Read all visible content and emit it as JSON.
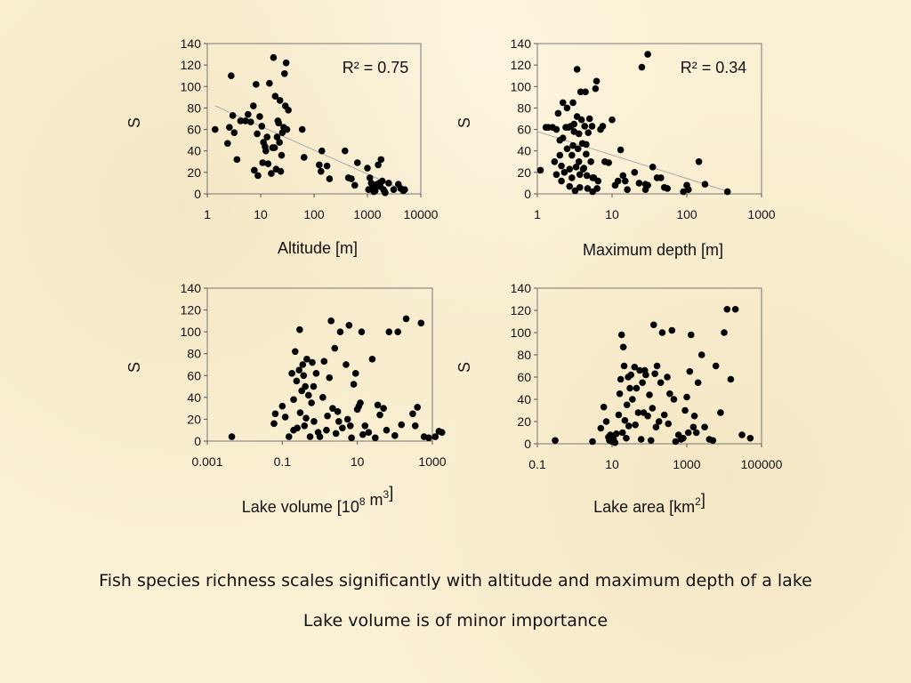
{
  "chart_data": [
    {
      "type": "scatter",
      "xscale": "log",
      "xlim": [
        1,
        10000
      ],
      "ylim": [
        0,
        140
      ],
      "xticks": [
        "1",
        "10",
        "100",
        "1000",
        "10000"
      ],
      "yticks": [
        "0",
        "20",
        "40",
        "60",
        "80",
        "100",
        "120",
        "140"
      ],
      "xlabel": "Altitude [m]",
      "ylabel": "S",
      "r2": "R² = 0.75",
      "trend": [
        [
          1.4,
          82
        ],
        [
          5000,
          3
        ]
      ],
      "points": [
        [
          1.4,
          60
        ],
        [
          2.4,
          47
        ],
        [
          2.6,
          62
        ],
        [
          2.8,
          110
        ],
        [
          3.0,
          73
        ],
        [
          3.2,
          57
        ],
        [
          3.6,
          32
        ],
        [
          4.2,
          68
        ],
        [
          5.2,
          68
        ],
        [
          5.8,
          74
        ],
        [
          6.5,
          67
        ],
        [
          7.3,
          82
        ],
        [
          7.6,
          22
        ],
        [
          8.2,
          102
        ],
        [
          8.6,
          56
        ],
        [
          8.9,
          17
        ],
        [
          9.6,
          72
        ],
        [
          10.5,
          63
        ],
        [
          10.9,
          29
        ],
        [
          11.3,
          48
        ],
        [
          12.1,
          44
        ],
        [
          12.5,
          40
        ],
        [
          13.2,
          53
        ],
        [
          13.8,
          28
        ],
        [
          14.6,
          103
        ],
        [
          15.8,
          19
        ],
        [
          16.7,
          43
        ],
        [
          17.4,
          127
        ],
        [
          18.2,
          43
        ],
        [
          18.7,
          91
        ],
        [
          19.5,
          23
        ],
        [
          20.3,
          53
        ],
        [
          21.0,
          68
        ],
        [
          21.7,
          66
        ],
        [
          22.5,
          48
        ],
        [
          23.0,
          87
        ],
        [
          23.8,
          21
        ],
        [
          24.6,
          36
        ],
        [
          25.5,
          57
        ],
        [
          27.0,
          62
        ],
        [
          28.0,
          112
        ],
        [
          29.0,
          82
        ],
        [
          30.0,
          122
        ],
        [
          31.0,
          60
        ],
        [
          33.0,
          78
        ],
        [
          60.0,
          60
        ],
        [
          65.0,
          34
        ],
        [
          125,
          27
        ],
        [
          135,
          21
        ],
        [
          140,
          40
        ],
        [
          175,
          26
        ],
        [
          195,
          14
        ],
        [
          380,
          40
        ],
        [
          440,
          15
        ],
        [
          500,
          14
        ],
        [
          580,
          8
        ],
        [
          650,
          29
        ],
        [
          1000,
          24
        ],
        [
          1050,
          4
        ],
        [
          1110,
          15
        ],
        [
          1180,
          10
        ],
        [
          1250,
          6
        ],
        [
          1320,
          2
        ],
        [
          1400,
          3
        ],
        [
          1470,
          8
        ],
        [
          1520,
          9
        ],
        [
          1590,
          27
        ],
        [
          1670,
          10
        ],
        [
          1740,
          7
        ],
        [
          1800,
          32
        ],
        [
          1900,
          12
        ],
        [
          2000,
          4
        ],
        [
          2100,
          2
        ],
        [
          2150,
          1
        ],
        [
          2500,
          10
        ],
        [
          3100,
          4
        ],
        [
          3800,
          9
        ],
        [
          4200,
          5
        ],
        [
          4700,
          3
        ],
        [
          5000,
          4
        ]
      ]
    },
    {
      "type": "scatter",
      "xscale": "log",
      "xlim": [
        1,
        1000
      ],
      "ylim": [
        0,
        140
      ],
      "xticks": [
        "1",
        "10",
        "100",
        "1000"
      ],
      "yticks": [
        "0",
        "20",
        "40",
        "60",
        "80",
        "100",
        "120",
        "140"
      ],
      "xlabel": "Maximum depth [m]",
      "ylabel": "S",
      "r2": "R² = 0.34",
      "trend": [
        [
          1,
          58
        ],
        [
          330,
          3
        ]
      ],
      "points": [
        [
          1.1,
          22
        ],
        [
          1.3,
          62
        ],
        [
          1.4,
          62
        ],
        [
          1.6,
          62
        ],
        [
          1.7,
          30
        ],
        [
          1.8,
          18
        ],
        [
          1.8,
          60
        ],
        [
          1.9,
          75
        ],
        [
          2.0,
          50
        ],
        [
          2.0,
          36
        ],
        [
          2.1,
          26
        ],
        [
          2.1,
          12
        ],
        [
          2.2,
          85
        ],
        [
          2.2,
          52
        ],
        [
          2.3,
          20
        ],
        [
          2.4,
          62
        ],
        [
          2.5,
          42
        ],
        [
          2.5,
          80
        ],
        [
          2.6,
          62
        ],
        [
          2.7,
          7
        ],
        [
          2.7,
          23
        ],
        [
          2.8,
          63
        ],
        [
          2.9,
          15
        ],
        [
          2.9,
          36
        ],
        [
          3.0,
          45
        ],
        [
          3.0,
          85
        ],
        [
          3.1,
          65
        ],
        [
          3.1,
          58
        ],
        [
          3.2,
          3
        ],
        [
          3.3,
          25
        ],
        [
          3.4,
          116
        ],
        [
          3.4,
          72
        ],
        [
          3.5,
          42
        ],
        [
          3.6,
          30
        ],
        [
          3.6,
          56
        ],
        [
          3.7,
          18
        ],
        [
          3.7,
          6
        ],
        [
          3.8,
          95
        ],
        [
          3.9,
          69
        ],
        [
          4.0,
          47
        ],
        [
          4.1,
          23
        ],
        [
          4.2,
          24
        ],
        [
          4.3,
          63
        ],
        [
          4.4,
          95
        ],
        [
          4.5,
          37
        ],
        [
          4.5,
          46
        ],
        [
          4.6,
          17
        ],
        [
          4.7,
          5
        ],
        [
          4.8,
          57
        ],
        [
          5.0,
          70
        ],
        [
          5.2,
          30
        ],
        [
          5.4,
          63
        ],
        [
          5.5,
          15
        ],
        [
          5.5,
          2
        ],
        [
          5.7,
          15
        ],
        [
          6.0,
          98
        ],
        [
          6.2,
          105
        ],
        [
          6.3,
          5
        ],
        [
          6.5,
          12
        ],
        [
          7.0,
          60
        ],
        [
          7.5,
          63
        ],
        [
          8.0,
          30
        ],
        [
          9.0,
          29
        ],
        [
          10.0,
          69
        ],
        [
          11.0,
          8
        ],
        [
          12.0,
          12
        ],
        [
          13.0,
          41
        ],
        [
          14.0,
          17
        ],
        [
          15.0,
          12
        ],
        [
          16.0,
          4
        ],
        [
          20.0,
          20
        ],
        [
          23.0,
          10
        ],
        [
          25.0,
          118
        ],
        [
          28.0,
          4
        ],
        [
          28.0,
          9
        ],
        [
          30.0,
          130
        ],
        [
          30.0,
          8
        ],
        [
          35.0,
          25
        ],
        [
          40.0,
          15
        ],
        [
          45.0,
          15
        ],
        [
          50.0,
          6
        ],
        [
          55.0,
          5
        ],
        [
          90.0,
          2
        ],
        [
          100.0,
          8
        ],
        [
          105.0,
          4
        ],
        [
          145.0,
          30
        ],
        [
          175.0,
          9
        ],
        [
          350.0,
          2
        ]
      ]
    },
    {
      "type": "scatter",
      "xscale": "log",
      "xlim": [
        0.001,
        1000
      ],
      "ylim": [
        0,
        140
      ],
      "xticks": [
        "0.001",
        "0.1",
        "10",
        "1000"
      ],
      "yticks": [
        "0",
        "20",
        "40",
        "60",
        "80",
        "100",
        "120",
        "140"
      ],
      "xlabel": "Lake volume [10",
      "xlabel_sup1": "8",
      "xlabel_mid": " m",
      "xlabel_sup2": "3",
      "xlabel_end": "]",
      "ylabel": "S",
      "points": [
        [
          0.0045,
          4
        ],
        [
          0.06,
          16
        ],
        [
          0.065,
          25
        ],
        [
          0.1,
          32
        ],
        [
          0.12,
          22
        ],
        [
          0.15,
          4
        ],
        [
          0.18,
          62
        ],
        [
          0.2,
          10
        ],
        [
          0.2,
          38
        ],
        [
          0.22,
          82
        ],
        [
          0.24,
          55
        ],
        [
          0.25,
          12
        ],
        [
          0.28,
          65
        ],
        [
          0.29,
          102
        ],
        [
          0.3,
          26
        ],
        [
          0.33,
          46
        ],
        [
          0.35,
          70
        ],
        [
          0.37,
          60
        ],
        [
          0.39,
          14
        ],
        [
          0.41,
          50
        ],
        [
          0.43,
          21
        ],
        [
          0.45,
          75
        ],
        [
          0.5,
          42
        ],
        [
          0.55,
          4
        ],
        [
          0.6,
          35
        ],
        [
          0.63,
          72
        ],
        [
          0.68,
          50
        ],
        [
          0.7,
          18
        ],
        [
          0.8,
          62
        ],
        [
          0.9,
          8
        ],
        [
          1.0,
          4
        ],
        [
          1.2,
          40
        ],
        [
          1.3,
          73
        ],
        [
          1.5,
          10
        ],
        [
          1.6,
          23
        ],
        [
          1.8,
          58
        ],
        [
          2.0,
          110
        ],
        [
          2.2,
          30
        ],
        [
          2.5,
          85
        ],
        [
          2.7,
          7
        ],
        [
          3.0,
          27
        ],
        [
          3.2,
          18
        ],
        [
          3.5,
          100
        ],
        [
          4.0,
          12
        ],
        [
          5.0,
          70
        ],
        [
          5.5,
          20
        ],
        [
          6.0,
          106
        ],
        [
          6.5,
          14
        ],
        [
          7.0,
          3
        ],
        [
          8.0,
          52
        ],
        [
          9.0,
          62
        ],
        [
          10,
          29
        ],
        [
          11,
          32
        ],
        [
          12,
          35
        ],
        [
          13,
          100
        ],
        [
          14,
          6
        ],
        [
          16,
          14
        ],
        [
          20,
          8
        ],
        [
          25,
          75
        ],
        [
          30,
          3
        ],
        [
          35,
          33
        ],
        [
          40,
          24
        ],
        [
          50,
          30
        ],
        [
          60,
          10
        ],
        [
          70,
          100
        ],
        [
          100,
          5
        ],
        [
          120,
          100
        ],
        [
          150,
          15
        ],
        [
          200,
          112
        ],
        [
          300,
          25
        ],
        [
          350,
          14
        ],
        [
          400,
          31
        ],
        [
          500,
          108
        ],
        [
          600,
          4
        ],
        [
          800,
          3
        ],
        [
          1200,
          4
        ],
        [
          1500,
          9
        ],
        [
          1800,
          8
        ]
      ]
    },
    {
      "type": "scatter",
      "xscale": "log",
      "xlim": [
        0.1,
        100000
      ],
      "ylim": [
        0,
        140
      ],
      "xticks": [
        "0.1",
        "10",
        "1000",
        "100000"
      ],
      "yticks": [
        "0",
        "20",
        "40",
        "60",
        "80",
        "100",
        "120",
        "140"
      ],
      "xlabel": "Lake area [km",
      "xlabel_sup1": "2",
      "xlabel_end": "]",
      "ylabel": "S",
      "points": [
        [
          0.3,
          3
        ],
        [
          3,
          2
        ],
        [
          5,
          14
        ],
        [
          6,
          33
        ],
        [
          7,
          20
        ],
        [
          8,
          6
        ],
        [
          8.5,
          3
        ],
        [
          9,
          8
        ],
        [
          10,
          2
        ],
        [
          10,
          6
        ],
        [
          11,
          4
        ],
        [
          12,
          1
        ],
        [
          13,
          9
        ],
        [
          15,
          26
        ],
        [
          16,
          45
        ],
        [
          17,
          58
        ],
        [
          18,
          98
        ],
        [
          19,
          10
        ],
        [
          20,
          87
        ],
        [
          21,
          70
        ],
        [
          22,
          21
        ],
        [
          24,
          5
        ],
        [
          25,
          35
        ],
        [
          27,
          60
        ],
        [
          28,
          16
        ],
        [
          30,
          50
        ],
        [
          32,
          62
        ],
        [
          35,
          40
        ],
        [
          40,
          69
        ],
        [
          42,
          17
        ],
        [
          45,
          50
        ],
        [
          50,
          28
        ],
        [
          55,
          66
        ],
        [
          60,
          4
        ],
        [
          65,
          55
        ],
        [
          70,
          28
        ],
        [
          75,
          66
        ],
        [
          80,
          62
        ],
        [
          90,
          25
        ],
        [
          100,
          44
        ],
        [
          110,
          3
        ],
        [
          120,
          32
        ],
        [
          130,
          107
        ],
        [
          140,
          63
        ],
        [
          150,
          15
        ],
        [
          160,
          70
        ],
        [
          180,
          20
        ],
        [
          200,
          55
        ],
        [
          220,
          100
        ],
        [
          250,
          26
        ],
        [
          300,
          60
        ],
        [
          320,
          18
        ],
        [
          350,
          45
        ],
        [
          400,
          102
        ],
        [
          450,
          40
        ],
        [
          500,
          2
        ],
        [
          600,
          8
        ],
        [
          700,
          4
        ],
        [
          800,
          5
        ],
        [
          900,
          30
        ],
        [
          1000,
          42
        ],
        [
          1100,
          10
        ],
        [
          1200,
          65
        ],
        [
          1300,
          98
        ],
        [
          1500,
          15
        ],
        [
          1600,
          25
        ],
        [
          1800,
          10
        ],
        [
          2000,
          55
        ],
        [
          2500,
          80
        ],
        [
          3000,
          15
        ],
        [
          4000,
          4
        ],
        [
          5000,
          3
        ],
        [
          6000,
          70
        ],
        [
          8000,
          28
        ],
        [
          10000,
          100
        ],
        [
          12000,
          121
        ],
        [
          15000,
          58
        ],
        [
          20000,
          121
        ],
        [
          30000,
          8
        ],
        [
          50000,
          5
        ]
      ]
    }
  ],
  "captions": {
    "line1": "Fish species richness scales significantly with altitude and maximum depth of a lake",
    "line2": "Lake volume is of minor importance"
  }
}
